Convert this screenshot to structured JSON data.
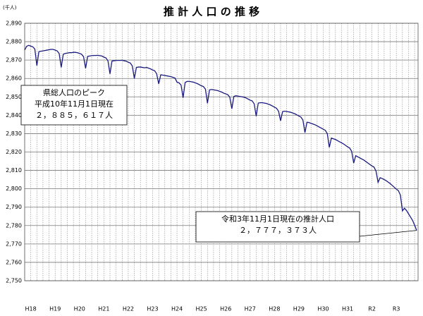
{
  "chart_data": {
    "type": "line",
    "title": "推 計 人 口 の 推 移",
    "y_unit": "(千人)",
    "categories": [
      null,
      null,
      null,
      "H18",
      null,
      null,
      null,
      null,
      null,
      null,
      null,
      null,
      null,
      null,
      null,
      "H19",
      null,
      null,
      null,
      null,
      null,
      null,
      null,
      null,
      null,
      null,
      null,
      "H20",
      null,
      null,
      null,
      null,
      null,
      null,
      null,
      null,
      null,
      null,
      null,
      "H21",
      null,
      null,
      null,
      null,
      null,
      null,
      null,
      null,
      null,
      null,
      null,
      "H22",
      null,
      null,
      null,
      null,
      null,
      null,
      null,
      null,
      null,
      null,
      null,
      "H23",
      null,
      null,
      null,
      null,
      null,
      null,
      null,
      null,
      null,
      null,
      null,
      "H24",
      null,
      null,
      null,
      null,
      null,
      null,
      null,
      null,
      null,
      null,
      null,
      "H25",
      null,
      null,
      null,
      null,
      null,
      null,
      null,
      null,
      null,
      null,
      null,
      "H26",
      null,
      null,
      null,
      null,
      null,
      null,
      null,
      null,
      null,
      null,
      null,
      "H27",
      null,
      null,
      null,
      null,
      null,
      null,
      null,
      null,
      null,
      null,
      null,
      "H28",
      null,
      null,
      null,
      null,
      null,
      null,
      null,
      null,
      null,
      null,
      null,
      "H29",
      null,
      null,
      null,
      null,
      null,
      null,
      null,
      null,
      null,
      null,
      null,
      "H30",
      null,
      null,
      null,
      null,
      null,
      null,
      null,
      null,
      null,
      null,
      null,
      "H31",
      null,
      null,
      null,
      null,
      null,
      null,
      null,
      null,
      null,
      null,
      null,
      "R2",
      null,
      null,
      null,
      null,
      null,
      null,
      null,
      null,
      null,
      null,
      null,
      "R3",
      null,
      null,
      null,
      null,
      null,
      null,
      null,
      null,
      null,
      null
    ],
    "values": [
      2875.5,
      2877.5,
      2878.0,
      2877.6,
      2877.2,
      2876.0,
      2867.0,
      2874.6,
      2874.8,
      2875.0,
      2875.2,
      2875.4,
      2875.6,
      2875.8,
      2875.8,
      2875.4,
      2875.0,
      2873.5,
      2866.0,
      2873.2,
      2873.6,
      2873.8,
      2874.0,
      2874.0,
      2874.2,
      2874.2,
      2874.0,
      2873.6,
      2873.2,
      2871.8,
      2865.5,
      2872.0,
      2872.2,
      2872.4,
      2872.5,
      2872.5,
      2872.6,
      2872.4,
      2872.2,
      2871.6,
      2871.2,
      2869.6,
      2862.5,
      2869.5,
      2869.6,
      2869.8,
      2869.8,
      2869.8,
      2869.9,
      2869.6,
      2869.4,
      2868.8,
      2868.4,
      2866.8,
      2860.0,
      2866.0,
      2866.2,
      2866.2,
      2866.0,
      2865.8,
      2866.0,
      2865.6,
      2865.2,
      2864.6,
      2864.2,
      2862.5,
      2857.0,
      2862.0,
      2861.8,
      2861.6,
      2861.4,
      2861.2,
      2861.0,
      2860.6,
      2860.2,
      2858.0,
      2857.6,
      2856.4,
      2849.5,
      2857.8,
      2858.4,
      2858.4,
      2858.2,
      2858.0,
      2857.6,
      2857.2,
      2856.6,
      2856.0,
      2855.6,
      2854.2,
      2846.5,
      2853.8,
      2854.0,
      2853.8,
      2853.6,
      2853.4,
      2853.0,
      2852.6,
      2852.0,
      2851.6,
      2851.2,
      2849.8,
      2843.5,
      2850.2,
      2850.6,
      2850.4,
      2850.2,
      2850.0,
      2849.8,
      2849.4,
      2848.8,
      2848.2,
      2847.8,
      2846.2,
      2839.5,
      2846.6,
      2846.8,
      2846.8,
      2846.6,
      2846.4,
      2846.0,
      2845.6,
      2845.0,
      2844.4,
      2843.8,
      2842.2,
      2837.0,
      2842.0,
      2842.2,
      2842.0,
      2841.8,
      2841.6,
      2841.2,
      2840.8,
      2840.2,
      2839.6,
      2839.0,
      2837.4,
      2830.5,
      2836.2,
      2836.0,
      2835.6,
      2835.2,
      2834.8,
      2834.2,
      2833.6,
      2833.0,
      2832.4,
      2831.8,
      2830.0,
      2822.5,
      2827.6,
      2827.2,
      2826.8,
      2826.2,
      2825.6,
      2825.0,
      2824.4,
      2823.6,
      2822.8,
      2822.2,
      2820.4,
      2814.0,
      2818.0,
      2817.4,
      2816.8,
      2816.2,
      2815.6,
      2814.8,
      2814.0,
      2813.2,
      2812.4,
      2811.8,
      2809.6,
      2803.5,
      2806.0,
      2805.6,
      2805.0,
      2804.4,
      2803.6,
      2802.8,
      2801.8,
      2800.8,
      2799.8,
      2799.0,
      2796.6,
      2788.0,
      2789.4,
      2788.2,
      2786.4,
      2784.6,
      2782.8,
      2780.2,
      2777.373
    ],
    "color": "#1a1a80",
    "ylim": [
      2750,
      2890
    ],
    "yticks": [
      {
        "value": 2750,
        "label": "2,750"
      },
      {
        "value": 2760,
        "label": "2,760"
      },
      {
        "value": 2770,
        "label": "2,770"
      },
      {
        "value": 2780,
        "label": "2,780"
      },
      {
        "value": 2790,
        "label": "2,790"
      },
      {
        "value": 2800,
        "label": "2,800"
      },
      {
        "value": 2810,
        "label": "2,810"
      },
      {
        "value": 2820,
        "label": "2,820"
      },
      {
        "value": 2830,
        "label": "2,830"
      },
      {
        "value": 2840,
        "label": "2,840"
      },
      {
        "value": 2850,
        "label": "2,850"
      },
      {
        "value": 2860,
        "label": "2,860"
      },
      {
        "value": 2870,
        "label": "2,870"
      },
      {
        "value": 2880,
        "label": "2,880"
      },
      {
        "value": 2890,
        "label": "2,890"
      }
    ],
    "grid": true,
    "annotations": [
      {
        "lines": [
          "県総人口のピーク",
          "平成10年11月1日現在",
          "２，８８５，６１７人"
        ]
      },
      {
        "lines": [
          "令和3年11月1日現在の推計人口",
          "２，７７７，３７３人"
        ]
      }
    ]
  }
}
